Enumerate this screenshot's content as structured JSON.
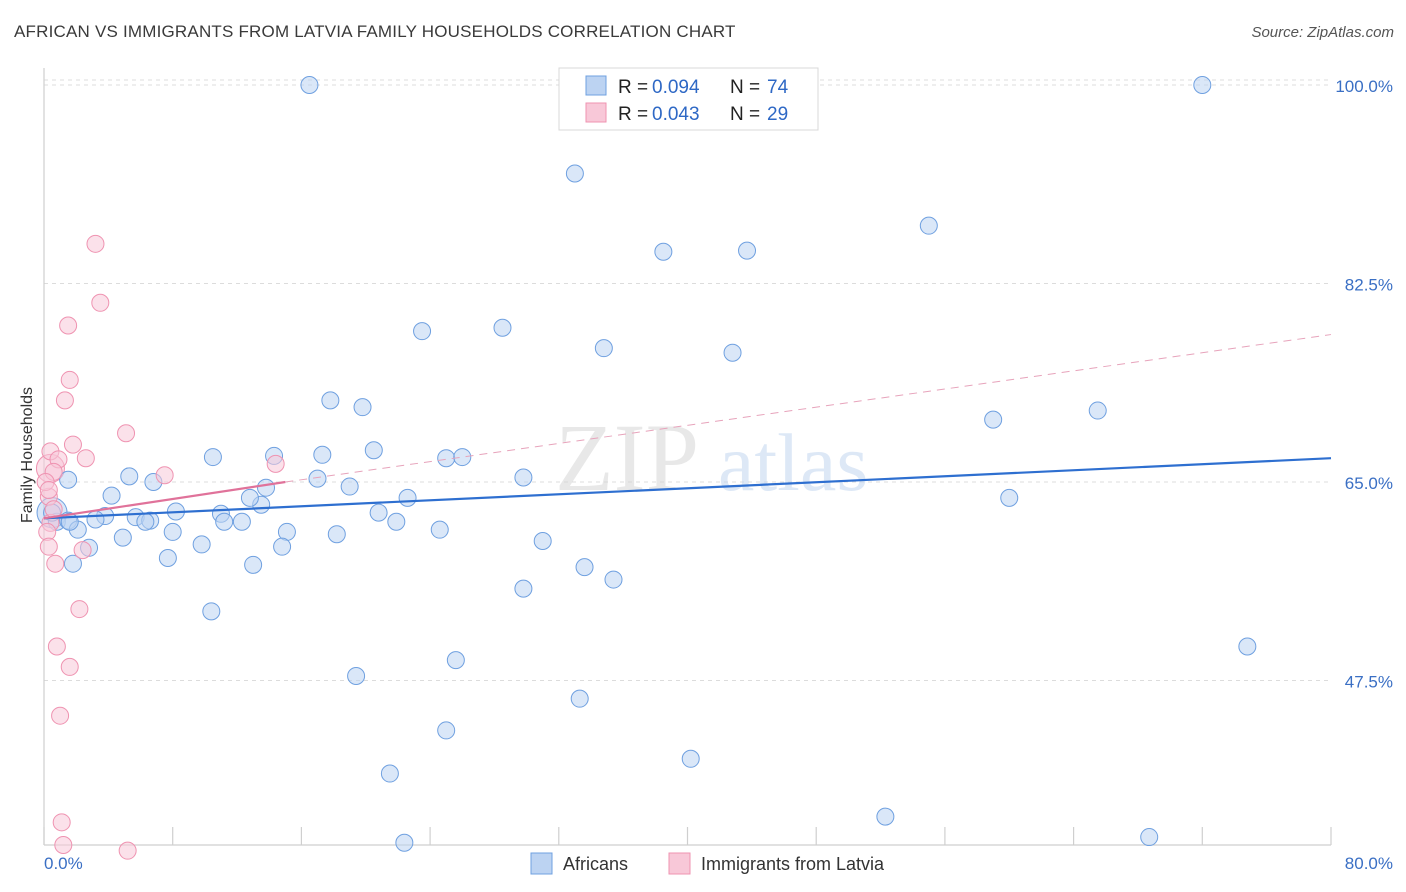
{
  "title": "AFRICAN VS IMMIGRANTS FROM LATVIA FAMILY HOUSEHOLDS CORRELATION CHART",
  "source": "Source: ZipAtlas.com",
  "watermark": {
    "zip": "ZIP",
    "atlas": "atlas"
  },
  "legend_top": [
    {
      "r_label": "R = ",
      "r_value": "0.094",
      "n_label": "N = ",
      "n_value": "74"
    },
    {
      "r_label": "R = ",
      "r_value": "0.043",
      "n_label": "N = ",
      "n_value": "29"
    }
  ],
  "legend_bottom": [
    "Africans",
    "Immigrants from Latvia"
  ],
  "chart_data": {
    "type": "scatter",
    "title": "AFRICAN VS IMMIGRANTS FROM LATVIA FAMILY HOUSEHOLDS CORRELATION CHART",
    "xlabel": "",
    "ylabel": "Family Households",
    "xlim": [
      0,
      80
    ],
    "ylim": [
      33,
      101.5
    ],
    "x_tick_labels": [
      "0.0%",
      "80.0%"
    ],
    "y_ticks": [
      47.5,
      65.0,
      82.5,
      100.0
    ],
    "y_tick_labels": [
      "47.5%",
      "65.0%",
      "82.5%",
      "100.0%"
    ],
    "grid": true,
    "legend_position": "top-center",
    "colors": {
      "africans": "#6fa0e0",
      "latvia": "#ef93b1",
      "africans_line": "#2e6fd0",
      "latvia_line": "#e0729a"
    },
    "series": [
      {
        "name": "Africans",
        "color": "#6fa0e0",
        "trend": {
          "x": [
            0,
            80
          ],
          "y": [
            61.8,
            67.1
          ]
        },
        "points": [
          [
            16.5,
            100.0
          ],
          [
            72.0,
            100.0
          ],
          [
            33.0,
            92.2
          ],
          [
            38.5,
            85.3
          ],
          [
            43.7,
            85.4
          ],
          [
            55.0,
            87.6
          ],
          [
            23.5,
            78.3
          ],
          [
            28.5,
            78.6
          ],
          [
            34.8,
            76.8
          ],
          [
            42.8,
            76.4
          ],
          [
            17.8,
            72.2
          ],
          [
            19.8,
            71.6
          ],
          [
            59.0,
            70.5
          ],
          [
            65.5,
            71.3
          ],
          [
            1.5,
            65.2
          ],
          [
            4.2,
            63.8
          ],
          [
            5.3,
            65.5
          ],
          [
            6.8,
            65.0
          ],
          [
            10.5,
            67.2
          ],
          [
            14.3,
            67.3
          ],
          [
            17.3,
            67.4
          ],
          [
            20.5,
            67.8
          ],
          [
            25.0,
            67.1
          ],
          [
            26.0,
            67.2
          ],
          [
            29.8,
            65.4
          ],
          [
            8.2,
            62.4
          ],
          [
            11.0,
            62.2
          ],
          [
            13.5,
            63.0
          ],
          [
            17.0,
            65.3
          ],
          [
            19.0,
            64.6
          ],
          [
            22.6,
            63.6
          ],
          [
            0.8,
            61.5
          ],
          [
            1.5,
            61.6
          ],
          [
            2.1,
            60.8
          ],
          [
            3.8,
            62.0
          ],
          [
            5.7,
            61.9
          ],
          [
            6.6,
            61.6
          ],
          [
            8.0,
            60.6
          ],
          [
            11.2,
            61.5
          ],
          [
            12.3,
            61.5
          ],
          [
            15.1,
            60.6
          ],
          [
            18.2,
            60.4
          ],
          [
            20.8,
            62.3
          ],
          [
            21.9,
            61.5
          ],
          [
            24.6,
            60.8
          ],
          [
            0.5,
            62.3
          ],
          [
            2.8,
            59.2
          ],
          [
            4.9,
            60.1
          ],
          [
            9.8,
            59.5
          ],
          [
            13.0,
            57.7
          ],
          [
            14.8,
            59.3
          ],
          [
            31.0,
            59.8
          ],
          [
            1.8,
            57.8
          ],
          [
            7.7,
            58.3
          ],
          [
            33.6,
            57.5
          ],
          [
            35.4,
            56.4
          ],
          [
            29.8,
            55.6
          ],
          [
            10.4,
            53.6
          ],
          [
            74.8,
            50.5
          ],
          [
            25.6,
            49.3
          ],
          [
            19.4,
            47.9
          ],
          [
            33.3,
            45.9
          ],
          [
            25.0,
            43.1
          ],
          [
            40.2,
            40.6
          ],
          [
            21.5,
            39.3
          ],
          [
            52.3,
            35.5
          ],
          [
            68.7,
            33.7
          ],
          [
            22.4,
            33.2
          ],
          [
            1.6,
            61.5
          ],
          [
            12.8,
            63.6
          ],
          [
            13.8,
            64.5
          ],
          [
            3.2,
            61.7
          ],
          [
            6.3,
            61.5
          ],
          [
            60.0,
            63.6
          ]
        ]
      },
      {
        "name": "Immigrants from Latvia",
        "color": "#ef93b1",
        "trend": {
          "x": [
            0,
            15
          ],
          "y": [
            61.8,
            65.0
          ]
        },
        "trend_extended": {
          "x": [
            15,
            80
          ],
          "y": [
            65.0,
            78.0
          ]
        },
        "points": [
          [
            3.2,
            86.0
          ],
          [
            3.5,
            80.8
          ],
          [
            1.5,
            78.8
          ],
          [
            1.3,
            72.2
          ],
          [
            1.6,
            74.0
          ],
          [
            5.1,
            69.3
          ],
          [
            1.8,
            68.3
          ],
          [
            0.4,
            67.7
          ],
          [
            0.9,
            67.0
          ],
          [
            2.6,
            67.1
          ],
          [
            0.6,
            65.9
          ],
          [
            7.5,
            65.6
          ],
          [
            14.4,
            66.6
          ],
          [
            0.3,
            63.7
          ],
          [
            0.4,
            61.4
          ],
          [
            0.2,
            60.6
          ],
          [
            0.3,
            59.3
          ],
          [
            2.4,
            59.0
          ],
          [
            0.7,
            57.8
          ],
          [
            2.2,
            53.8
          ],
          [
            0.8,
            50.5
          ],
          [
            1.6,
            48.7
          ],
          [
            1.0,
            44.4
          ],
          [
            1.1,
            35.0
          ],
          [
            1.2,
            33.0
          ],
          [
            5.2,
            32.5
          ],
          [
            0.1,
            65.0
          ],
          [
            0.3,
            64.3
          ],
          [
            0.6,
            62.6
          ]
        ]
      }
    ]
  }
}
